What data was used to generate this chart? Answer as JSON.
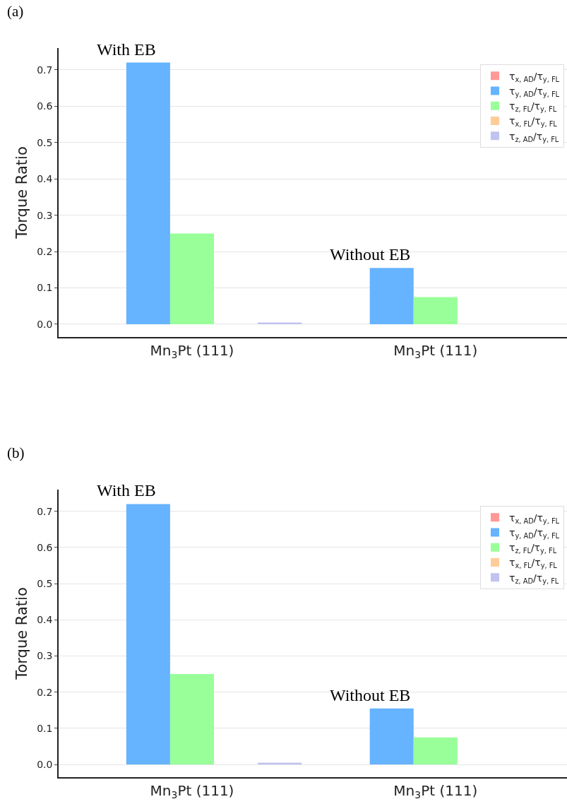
{
  "chart_data": [
    {
      "type": "bar",
      "title": "(a)",
      "ylabel": "Torque Ratio",
      "categories": [
        "Mn$_{3}$Pt (111)",
        "Mn$_{3}$Pt (111)"
      ],
      "series": [
        {
          "name": "τ$_{x, AD}$/τ$_{y, FL}$",
          "color": "#ff9896",
          "values": [
            0,
            0
          ]
        },
        {
          "name": "τ$_{y, AD}$/τ$_{y, FL}$",
          "color": "#66b3ff",
          "values": [
            0.72,
            0.155
          ]
        },
        {
          "name": "τ$_{z, FL}$/τ$_{y, FL}$",
          "color": "#99ff99",
          "values": [
            0.25,
            0.075
          ]
        },
        {
          "name": "τ$_{x, FL}$/τ$_{y, FL}$",
          "color": "#ffcc99",
          "values": [
            0,
            0
          ]
        },
        {
          "name": "τ$_{z, AD}$/τ$_{y, FL}$",
          "color": "#c2c2f0",
          "values": [
            0.005,
            0
          ]
        }
      ],
      "ylim": [
        -0.035,
        0.76
      ],
      "yticks": [
        {
          "value": 0,
          "label": "0.0"
        },
        0.1,
        0.2,
        0.3,
        0.4,
        0.5,
        0.6,
        0.7
      ],
      "grid": "y",
      "legend": "top right",
      "annotations": [
        "With EB",
        "Without EB"
      ]
    },
    {
      "type": "bar",
      "title": "(b)",
      "ylabel": "Torque Ratio",
      "categories": [
        "Mn$_{3}$Pt (111)",
        "Mn$_{3}$Pt (111)"
      ],
      "series": [
        {
          "name": "τ$_{x, AD}$/τ$_{y, FL}$",
          "color": "#ff9896",
          "values": [
            0,
            0
          ]
        },
        {
          "name": "τ$_{y, AD}$/τ$_{y, FL}$",
          "color": "#66b3ff",
          "values": [
            0.72,
            0.155
          ]
        },
        {
          "name": "τ$_{z, FL}$/τ$_{y, FL}$",
          "color": "#99ff99",
          "values": [
            0.25,
            0.075
          ]
        },
        {
          "name": "τ$_{x, FL}$/τ$_{y, FL}$",
          "color": "#ffcc99",
          "values": [
            0,
            0
          ]
        },
        {
          "name": "τ$_{z, AD}$/τ$_{y, FL}$",
          "color": "#c2c2f0",
          "values": [
            0.005,
            0
          ]
        }
      ],
      "ylim": [
        -0.035,
        0.76
      ],
      "yticks": [
        {
          "value": 0,
          "label": "0.0"
        },
        0.1,
        0.2,
        0.3,
        0.4,
        0.5,
        0.6,
        0.7
      ],
      "grid": "y",
      "legend": "top right",
      "annotations": [
        "With EB",
        "Without EB"
      ]
    }
  ]
}
